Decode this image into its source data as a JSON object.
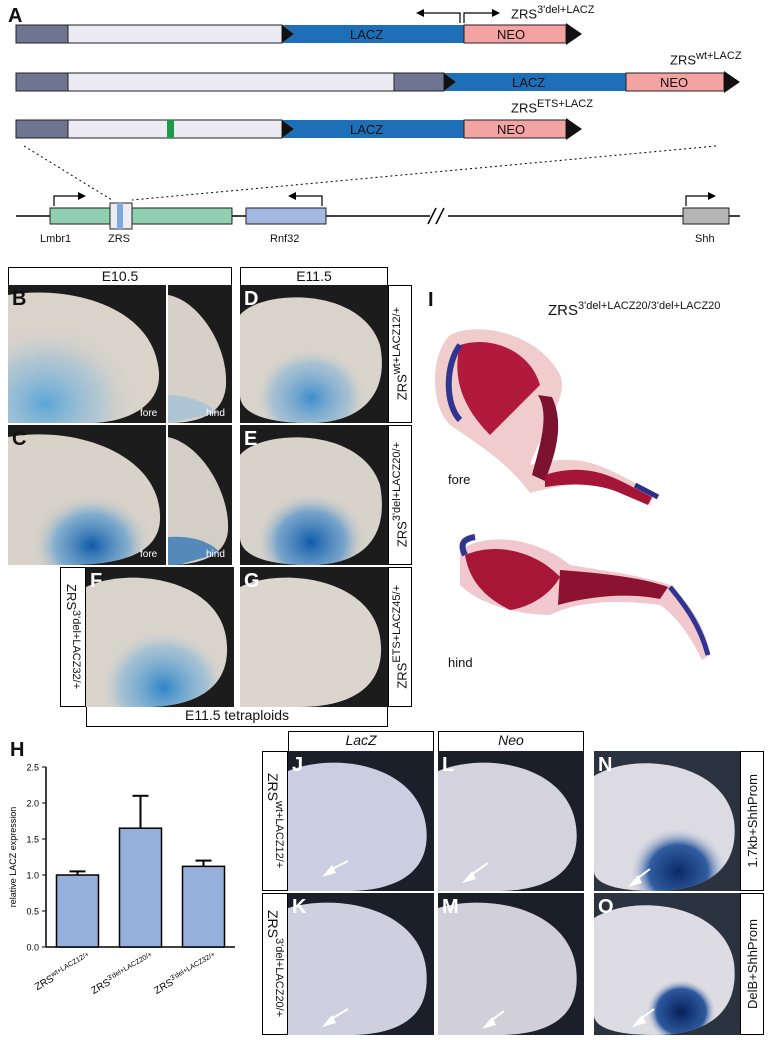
{
  "panelA": {
    "label": "A",
    "constructs": [
      {
        "name": "ZRS",
        "sup": "3'del+LACZ",
        "lacz": "LACZ",
        "neo": "NEO"
      },
      {
        "name": "ZRS",
        "sup": "wt+LACZ",
        "lacz": "LACZ",
        "neo": "NEO"
      },
      {
        "name": "ZRS",
        "sup": "ETS+LACZ",
        "lacz": "LACZ",
        "neo": "NEO"
      }
    ],
    "locus": {
      "lmbr1": "Lmbr1",
      "zrs": "ZRS",
      "rnf32": "Rnf32",
      "shh": "Shh"
    }
  },
  "embryos": {
    "e105": "E10.5",
    "e115": "E11.5",
    "tetraploids": "E11.5 tetraploids",
    "fore": "fore",
    "hind": "hind",
    "B": "B",
    "C": "C",
    "D": "D",
    "E": "E",
    "F": "F",
    "G": "G",
    "row1": {
      "name": "ZRS",
      "sup": "wt+LACZ12/+"
    },
    "row2": {
      "name": "ZRS",
      "sup": "3'del+LACZ20/+"
    },
    "rowF": {
      "name": "ZRS",
      "sup": "3'del+LACZ32/+"
    },
    "rowG": {
      "name": "ZRS",
      "sup": "ETS+LACZ45/+"
    }
  },
  "panelI": {
    "label": "I",
    "title": {
      "name": "ZRS",
      "sup": "3'del+LACZ20/3'del+LACZ20"
    },
    "fore": "fore",
    "hind": "hind"
  },
  "panelH": {
    "label": "H",
    "chart_data": {
      "type": "bar",
      "categories": [
        "ZRSwt+LACZ12/+",
        "ZRS3'del+LACZ20/+",
        "ZRS3'del+LACZ32/+"
      ],
      "category_labels": [
        {
          "name": "ZRS",
          "sup": "wt+LACZ12/+"
        },
        {
          "name": "ZRS",
          "sup": "3'del+LACZ20/+"
        },
        {
          "name": "ZRS",
          "sup": "3'del+LACZ32/+"
        }
      ],
      "values": [
        1.0,
        1.65,
        1.12
      ],
      "errors": [
        0.05,
        0.45,
        0.08
      ],
      "ylabel": "relative LACZ expression",
      "ylim": [
        0,
        2.5
      ],
      "yticks": [
        "0.0",
        "0.5",
        "1.0",
        "1.5",
        "2.0",
        "2.5"
      ],
      "bar_color": "#96b0dc"
    }
  },
  "insitu": {
    "lacz": "LacZ",
    "neo": "Neo",
    "J": "J",
    "K": "K",
    "L": "L",
    "M": "M",
    "N": "N",
    "O": "O",
    "row1": {
      "name": "ZRS",
      "sup": "wt+LACZ12/+"
    },
    "row2": {
      "name": "ZRS",
      "sup": "3'del+LACZ20/+"
    },
    "n_label": "1.7kb+ShhProm",
    "o_label": "DelB+ShhProm"
  }
}
